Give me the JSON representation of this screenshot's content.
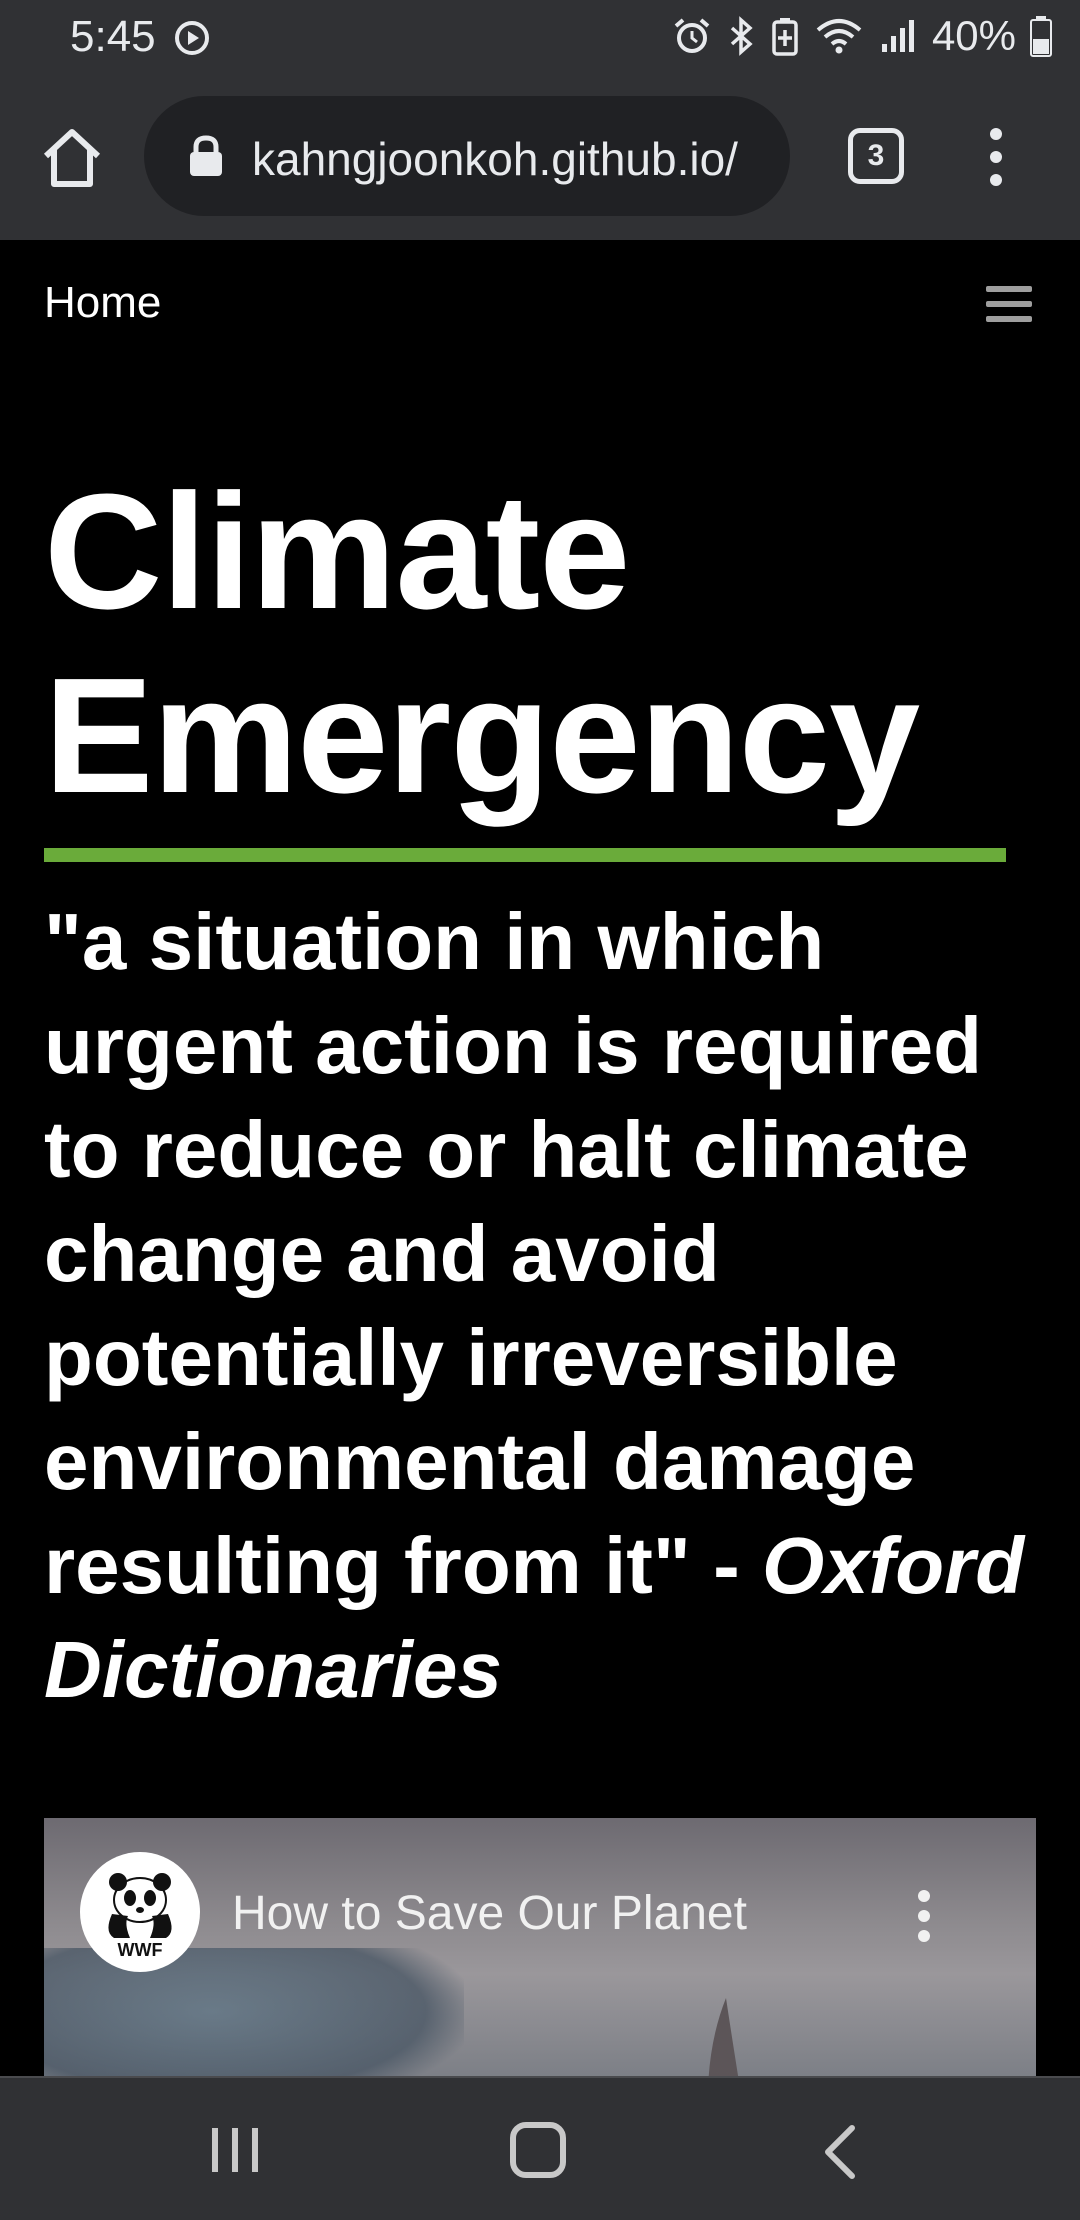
{
  "status_bar": {
    "time": "5:45",
    "battery": "40%",
    "icons": [
      "media-icon",
      "alarm-icon",
      "bluetooth-icon",
      "battery-saver-icon",
      "wifi-icon",
      "signal-icon",
      "battery-icon"
    ]
  },
  "browser": {
    "url": "kahngjoonkoh.github.io/",
    "tab_count": "3",
    "icons": [
      "home-icon",
      "lock-icon",
      "more-vert-icon"
    ]
  },
  "site_nav": {
    "home_label": "Home",
    "menu_icon": "hamburger-icon"
  },
  "hero": {
    "title_line1": "Climate",
    "title_line2": "Emergency",
    "accent_color": "#6aab3a"
  },
  "quote": {
    "text": "\"a situation in which urgent action is required to reduce or halt climate change and avoid potentially irreversible environmental damage resulting from it\" - ",
    "source": "Oxford Dictionaries"
  },
  "video": {
    "title": "How to Save Our Planet",
    "channel_logo_text": "WWF"
  },
  "nav_bar": {
    "icons": [
      "recents-icon",
      "home-icon",
      "back-icon"
    ]
  }
}
